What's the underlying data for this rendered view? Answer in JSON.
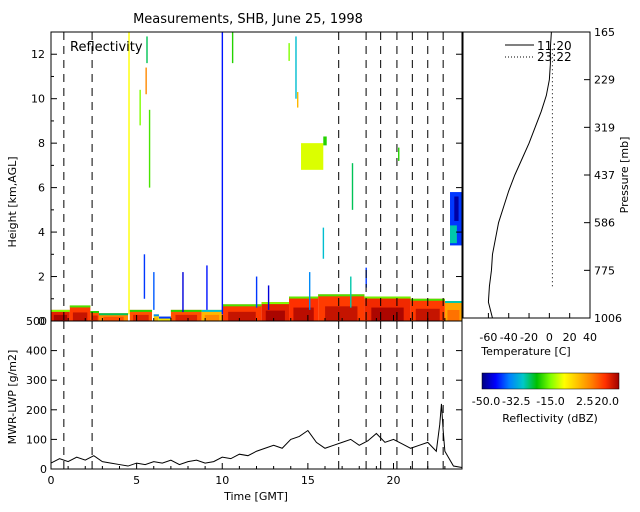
{
  "title": "Measurements, SHB, June 25, 1998",
  "chart_data": [
    {
      "id": "reflectivity",
      "type": "heatmap",
      "panel_label": "Reflectivity",
      "ylabel": "Height [km,AGL]",
      "xlim": [
        0,
        24
      ],
      "ylim": [
        0,
        13
      ],
      "yticks": [
        0,
        2,
        4,
        6,
        8,
        10,
        12
      ],
      "grid": false,
      "dashed_vlines_x": [
        0.75,
        2.4,
        16.8,
        18.4,
        19.25,
        20.2,
        21.1,
        22.0,
        22.9
      ],
      "low_cloud_band": [
        {
          "x0": 0.0,
          "x1": 1.1,
          "top_km": 0.5,
          "dbz": 15
        },
        {
          "x0": 1.1,
          "x1": 2.3,
          "top_km": 0.7,
          "dbz": 12
        },
        {
          "x0": 2.3,
          "x1": 2.8,
          "top_km": 0.45,
          "dbz": 10
        },
        {
          "x0": 2.8,
          "x1": 4.5,
          "top_km": 0.35,
          "dbz": 5
        },
        {
          "x0": 4.6,
          "x1": 5.9,
          "top_km": 0.5,
          "dbz": 10
        },
        {
          "x0": 6.0,
          "x1": 6.3,
          "top_km": 0.3,
          "dbz": -5
        },
        {
          "x0": 6.3,
          "x1": 7.0,
          "top_km": 0.2,
          "dbz": -10
        },
        {
          "x0": 7.0,
          "x1": 8.8,
          "top_km": 0.5,
          "dbz": 10
        },
        {
          "x0": 8.8,
          "x1": 10.0,
          "top_km": 0.5,
          "dbz": 0
        },
        {
          "x0": 10.0,
          "x1": 12.3,
          "top_km": 0.75,
          "dbz": 12
        },
        {
          "x0": 12.3,
          "x1": 13.9,
          "top_km": 0.85,
          "dbz": 15
        },
        {
          "x0": 13.9,
          "x1": 15.6,
          "top_km": 1.1,
          "dbz": 13
        },
        {
          "x0": 15.6,
          "x1": 18.3,
          "top_km": 1.2,
          "dbz": 12
        },
        {
          "x0": 18.3,
          "x1": 21.0,
          "top_km": 1.1,
          "dbz": 14
        },
        {
          "x0": 21.0,
          "x1": 23.0,
          "top_km": 1.0,
          "dbz": 12
        },
        {
          "x0": 23.0,
          "x1": 24.0,
          "top_km": 0.9,
          "dbz": 2
        }
      ],
      "echo_patches": [
        {
          "x0": 14.6,
          "x1": 15.9,
          "y0": 6.8,
          "y1": 8.0,
          "dbz": -10
        },
        {
          "x0": 23.3,
          "x1": 24.0,
          "y0": 3.4,
          "y1": 5.8,
          "dbz": -40
        },
        {
          "x0": 23.55,
          "x1": 23.8,
          "y0": 4.5,
          "y1": 5.6,
          "dbz": -48
        },
        {
          "x0": 23.3,
          "x1": 23.7,
          "y0": 3.5,
          "y1": 4.3,
          "dbz": -28
        },
        {
          "x0": 15.9,
          "x1": 16.1,
          "y0": 7.9,
          "y1": 8.3,
          "dbz": -20
        }
      ],
      "streaks": [
        {
          "x": 4.55,
          "y0": 0.3,
          "y1": 13,
          "dbz": -8
        },
        {
          "x": 5.2,
          "y0": 8.8,
          "y1": 10.4,
          "dbz": -15
        },
        {
          "x": 5.45,
          "y0": 1.0,
          "y1": 3.0,
          "dbz": -40
        },
        {
          "x": 5.55,
          "y0": 10.2,
          "y1": 11.4,
          "dbz": 5
        },
        {
          "x": 5.75,
          "y0": 6.0,
          "y1": 9.5,
          "dbz": -18
        },
        {
          "x": 5.6,
          "y0": 11.6,
          "y1": 12.8,
          "dbz": -25
        },
        {
          "x": 6.0,
          "y0": 0.5,
          "y1": 2.2,
          "dbz": -38
        },
        {
          "x": 7.7,
          "y0": 0.4,
          "y1": 2.2,
          "dbz": -45
        },
        {
          "x": 9.1,
          "y0": 0.5,
          "y1": 2.5,
          "dbz": -42
        },
        {
          "x": 10.0,
          "y0": 0.3,
          "y1": 13,
          "dbz": -42
        },
        {
          "x": 10.6,
          "y0": 11.6,
          "y1": 13.0,
          "dbz": -20
        },
        {
          "x": 12.0,
          "y0": 0.6,
          "y1": 2.0,
          "dbz": -40
        },
        {
          "x": 12.7,
          "y0": 0.5,
          "y1": 1.6,
          "dbz": -45
        },
        {
          "x": 13.9,
          "y0": 11.7,
          "y1": 12.5,
          "dbz": -15
        },
        {
          "x": 14.3,
          "y0": 10.0,
          "y1": 12.8,
          "dbz": -30
        },
        {
          "x": 14.4,
          "y0": 9.6,
          "y1": 10.3,
          "dbz": 0
        },
        {
          "x": 15.1,
          "y0": 0.5,
          "y1": 2.2,
          "dbz": -35
        },
        {
          "x": 15.9,
          "y0": 2.8,
          "y1": 4.2,
          "dbz": -30
        },
        {
          "x": 17.5,
          "y0": 0.6,
          "y1": 2.0,
          "dbz": -28
        },
        {
          "x": 17.6,
          "y0": 5.0,
          "y1": 7.1,
          "dbz": -25
        },
        {
          "x": 18.4,
          "y0": 1.5,
          "y1": 2.4,
          "dbz": -40
        },
        {
          "x": 20.3,
          "y0": 7.2,
          "y1": 7.8,
          "dbz": -20
        }
      ]
    },
    {
      "id": "sounding",
      "type": "line",
      "xlabel": "Temperature [C]",
      "ylabel": "Pressure [mb]",
      "xlim": [
        -85,
        40
      ],
      "xticks": [
        -60,
        -40,
        -20,
        0,
        20,
        40
      ],
      "pressure_ticks": [
        165,
        229,
        319,
        437,
        586,
        775,
        1006
      ],
      "legend": [
        "11:20",
        "23:22"
      ],
      "legend_style": [
        "solid",
        "dotted"
      ],
      "series": [
        {
          "name": "11:20",
          "style": "solid",
          "x": [
            -56,
            -60,
            -59,
            -57,
            -56,
            -53,
            -50,
            -45,
            -40,
            -34,
            -27,
            -20,
            -14,
            -8,
            -3,
            0,
            1,
            1,
            2
          ],
          "y": [
            0,
            0.5,
            1,
            1.5,
            2,
            2.5,
            3,
            3.5,
            4,
            4.5,
            5,
            5.5,
            6,
            6.5,
            7,
            7.5,
            8,
            8.5,
            9
          ]
        },
        {
          "name": "23:22",
          "style": "dotted",
          "x": [
            3,
            3,
            3,
            3,
            3,
            3,
            3,
            3,
            3,
            3,
            3,
            3,
            3,
            3,
            3,
            3
          ],
          "y": [
            1,
            1.5,
            2,
            2.5,
            3,
            3.5,
            4,
            4.5,
            5,
            5.5,
            6,
            6.5,
            7,
            7.5,
            8,
            8.5
          ]
        }
      ]
    },
    {
      "id": "lwp",
      "type": "line",
      "xlabel": "Time [GMT]",
      "ylabel": "MWR-LWP [g/m2]",
      "xlim": [
        0,
        24
      ],
      "ylim": [
        0,
        500
      ],
      "xticks": [
        0,
        5,
        10,
        15,
        20
      ],
      "yticks": [
        0,
        100,
        200,
        300,
        400,
        500
      ],
      "dashed_vlines_x": [
        0.75,
        2.4,
        16.8,
        18.4,
        19.25,
        20.2,
        21.1,
        22.0,
        22.9
      ],
      "x": [
        0,
        0.5,
        1.0,
        1.5,
        2.0,
        2.5,
        3.0,
        3.5,
        4.0,
        4.5,
        5.0,
        5.5,
        6.0,
        6.5,
        7.0,
        7.5,
        8.0,
        8.5,
        9.0,
        9.5,
        10.0,
        10.5,
        11.0,
        11.5,
        12.0,
        12.5,
        13.0,
        13.5,
        14.0,
        14.5,
        15.0,
        15.5,
        16.0,
        16.5,
        17.0,
        17.5,
        18.0,
        18.5,
        19.0,
        19.5,
        20.0,
        20.5,
        21.0,
        21.5,
        22.0,
        22.5,
        22.7,
        22.8,
        22.9,
        23.0,
        23.5,
        24.0
      ],
      "y": [
        20,
        35,
        25,
        40,
        30,
        45,
        25,
        20,
        15,
        10,
        20,
        15,
        25,
        20,
        30,
        15,
        25,
        30,
        20,
        25,
        40,
        35,
        50,
        45,
        60,
        70,
        80,
        70,
        100,
        110,
        130,
        90,
        70,
        80,
        90,
        100,
        80,
        95,
        120,
        90,
        100,
        85,
        70,
        80,
        90,
        60,
        150,
        220,
        130,
        60,
        10,
        5
      ]
    },
    {
      "id": "colorbar",
      "type": "heatmap",
      "xlabel": "Reflectivity (dBZ)",
      "tick_labels": [
        "-50.0",
        "-32.5",
        "-15.0",
        "2.5",
        "20.0"
      ],
      "range": [
        -50,
        20
      ]
    }
  ]
}
